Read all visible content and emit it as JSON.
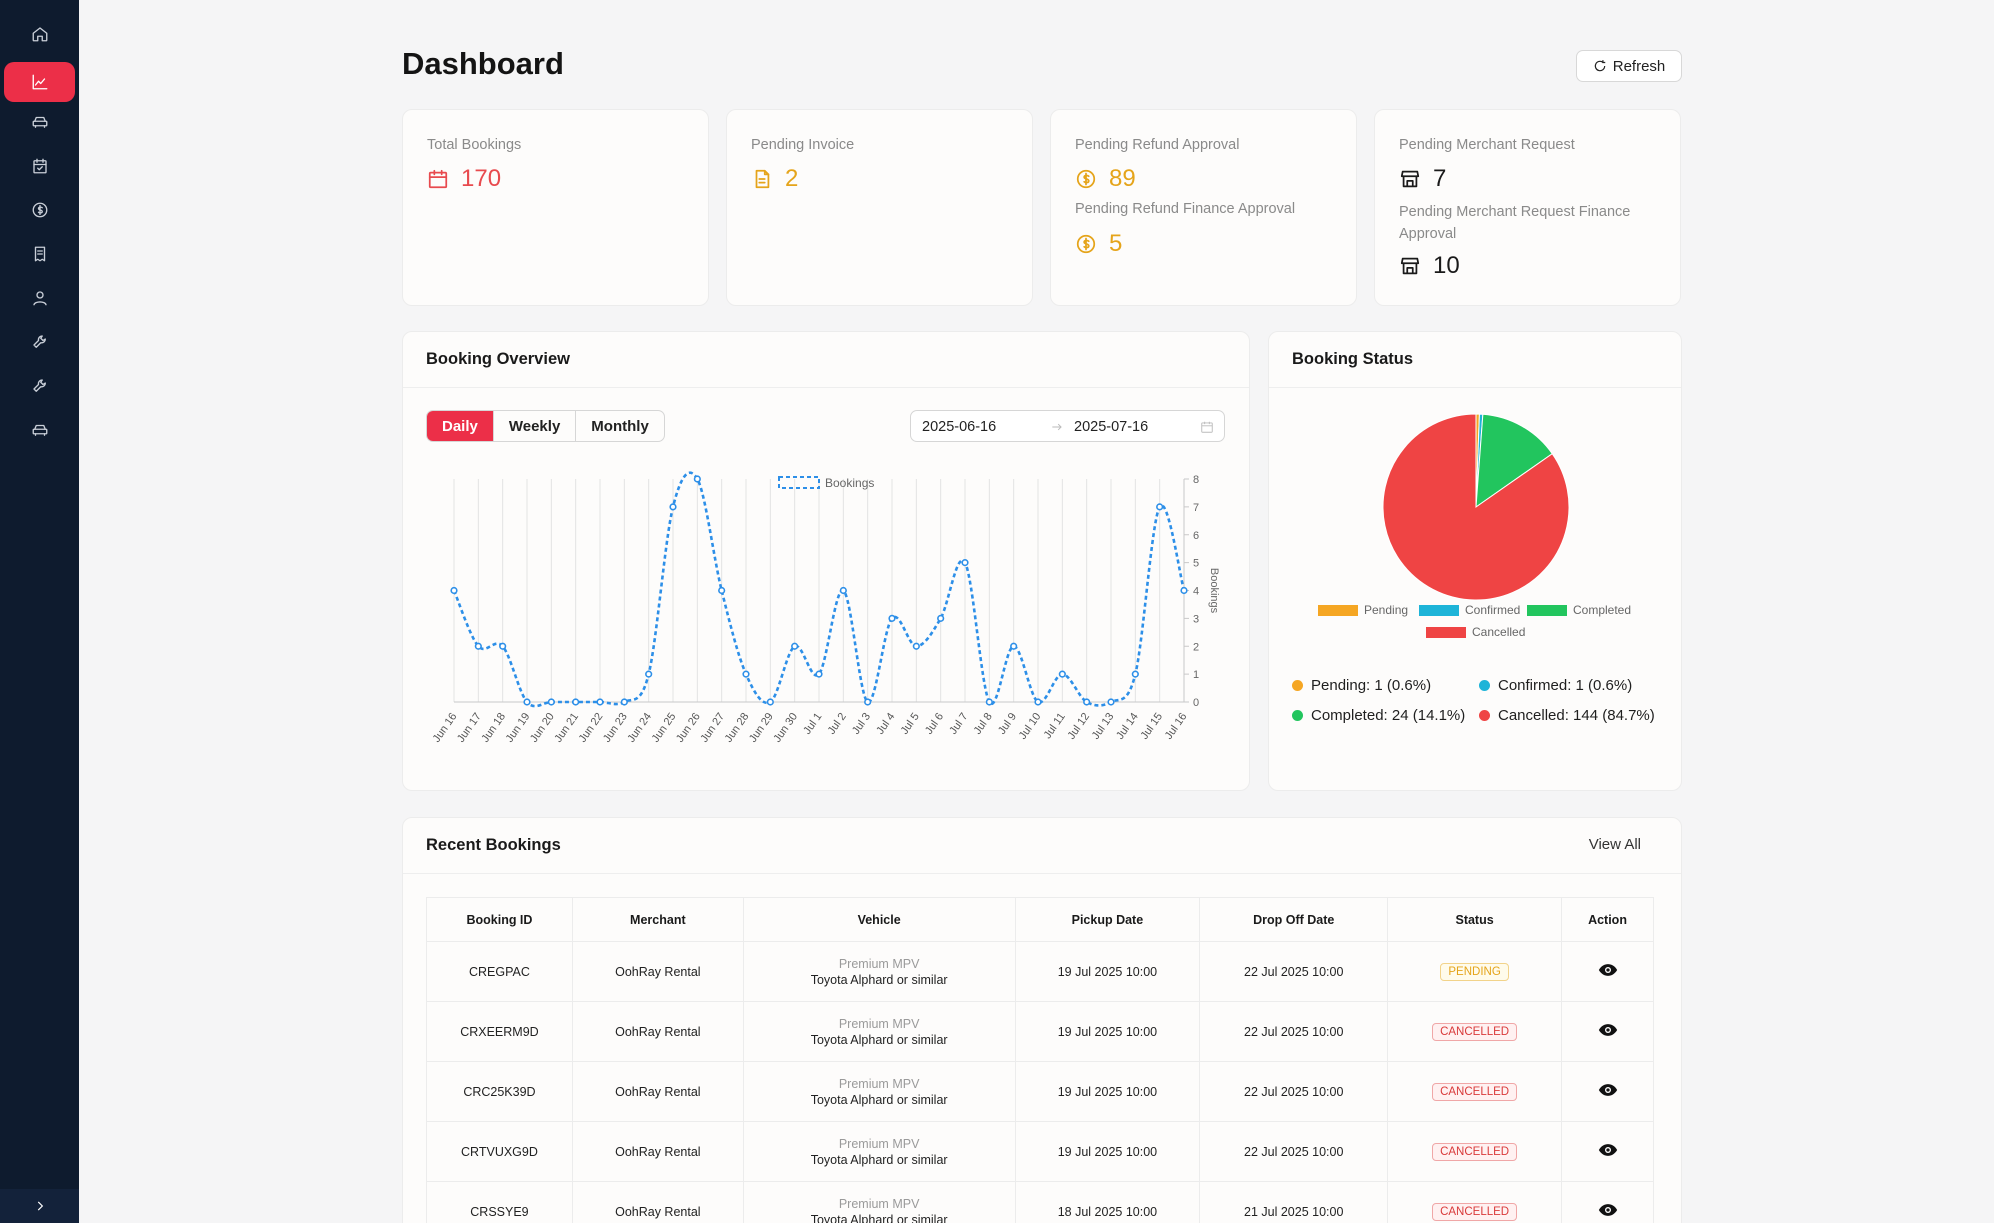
{
  "header": {
    "title": "Dashboard",
    "refresh_label": "Refresh"
  },
  "sidebar": {
    "items": [
      {
        "icon": "home-icon"
      },
      {
        "icon": "chart-icon",
        "active": true
      },
      {
        "icon": "car-icon"
      },
      {
        "icon": "calendar-check-icon"
      },
      {
        "icon": "dollar-icon"
      },
      {
        "icon": "invoice-icon"
      },
      {
        "icon": "user-icon"
      },
      {
        "icon": "wrench-icon"
      },
      {
        "icon": "wrench-icon"
      },
      {
        "icon": "car-icon"
      }
    ]
  },
  "stats": {
    "total_bookings": {
      "label": "Total Bookings",
      "value": "170"
    },
    "pending_invoice": {
      "label": "Pending Invoice",
      "value": "2"
    },
    "pending_refund": {
      "label": "Pending Refund Approval",
      "value": "89",
      "finance_label": "Pending Refund Finance Approval",
      "finance_value": "5"
    },
    "pending_merchant": {
      "label": "Pending Merchant Request",
      "value": "7",
      "finance_label_line1": "Pending Merchant Request Finance",
      "finance_label_line2": "Approval",
      "finance_value": "10"
    }
  },
  "overview": {
    "title": "Booking Overview",
    "tabs": [
      "Daily",
      "Weekly",
      "Monthly"
    ],
    "active_tab": "Daily",
    "date_start": "2025-06-16",
    "date_end": "2025-07-16"
  },
  "status_panel": {
    "title": "Booking Status",
    "legend_items": [
      {
        "label": "Pending: 1 (0.6%)",
        "color": "#f5a623"
      },
      {
        "label": "Confirmed: 1 (0.6%)",
        "color": "#1eb4d8"
      },
      {
        "label": "Completed: 24 (14.1%)",
        "color": "#22c55e"
      },
      {
        "label": "Cancelled: 144 (84.7%)",
        "color": "#ef4444"
      }
    ]
  },
  "chart_data": [
    {
      "type": "line",
      "legend": [
        "Bookings"
      ],
      "ylabel": "Bookings",
      "ylim": [
        0,
        8
      ],
      "y_ticks": [
        0,
        1,
        2,
        3,
        4,
        5,
        6,
        7,
        8
      ],
      "x": [
        "Jun 16",
        "Jun 17",
        "Jun 18",
        "Jun 19",
        "Jun 20",
        "Jun 21",
        "Jun 22",
        "Jun 23",
        "Jun 24",
        "Jun 25",
        "Jun 26",
        "Jun 27",
        "Jun 28",
        "Jun 29",
        "Jun 30",
        "Jul 1",
        "Jul 2",
        "Jul 3",
        "Jul 4",
        "Jul 5",
        "Jul 6",
        "Jul 7",
        "Jul 8",
        "Jul 9",
        "Jul 10",
        "Jul 11",
        "Jul 12",
        "Jul 13",
        "Jul 14",
        "Jul 15",
        "Jul 16"
      ],
      "series": [
        {
          "name": "Bookings",
          "color": "#2d8fe8",
          "values": [
            4,
            2,
            2,
            0,
            0,
            0,
            0,
            0,
            1,
            7,
            8,
            4,
            1,
            0,
            2,
            1,
            4,
            0,
            3,
            2,
            3,
            5,
            0,
            2,
            0,
            1,
            0,
            0,
            1,
            7,
            4
          ]
        }
      ]
    },
    {
      "type": "pie",
      "legend": [
        "Pending",
        "Confirmed",
        "Completed",
        "Cancelled"
      ],
      "categories": [
        "Pending",
        "Confirmed",
        "Completed",
        "Cancelled"
      ],
      "values": [
        1,
        1,
        24,
        144
      ],
      "colors": [
        "#f5a623",
        "#1eb4d8",
        "#22c55e",
        "#ef4444"
      ]
    }
  ],
  "recent": {
    "title": "Recent Bookings",
    "view_all": "View All",
    "columns": [
      "Booking ID",
      "Merchant",
      "Vehicle",
      "Pickup Date",
      "Drop Off Date",
      "Status",
      "Action"
    ],
    "rows": [
      {
        "id": "CREGPAC",
        "merchant": "OohRay Rental",
        "vehicle_cat": "Premium MPV",
        "vehicle": "Toyota Alphard or similar",
        "pickup": "19 Jul 2025 10:00",
        "dropoff": "22 Jul 2025 10:00",
        "status": "PENDING"
      },
      {
        "id": "CRXEERM9D",
        "merchant": "OohRay Rental",
        "vehicle_cat": "Premium MPV",
        "vehicle": "Toyota Alphard or similar",
        "pickup": "19 Jul 2025 10:00",
        "dropoff": "22 Jul 2025 10:00",
        "status": "CANCELLED"
      },
      {
        "id": "CRC25K39D",
        "merchant": "OohRay Rental",
        "vehicle_cat": "Premium MPV",
        "vehicle": "Toyota Alphard or similar",
        "pickup": "19 Jul 2025 10:00",
        "dropoff": "22 Jul 2025 10:00",
        "status": "CANCELLED"
      },
      {
        "id": "CRTVUXG9D",
        "merchant": "OohRay Rental",
        "vehicle_cat": "Premium MPV",
        "vehicle": "Toyota Alphard or similar",
        "pickup": "19 Jul 2025 10:00",
        "dropoff": "22 Jul 2025 10:00",
        "status": "CANCELLED"
      },
      {
        "id": "CRSSYE9",
        "merchant": "OohRay Rental",
        "vehicle_cat": "Premium MPV",
        "vehicle": "Toyota Alphard or similar",
        "pickup": "18 Jul 2025 10:00",
        "dropoff": "21 Jul 2025 10:00",
        "status": "CANCELLED"
      }
    ]
  }
}
